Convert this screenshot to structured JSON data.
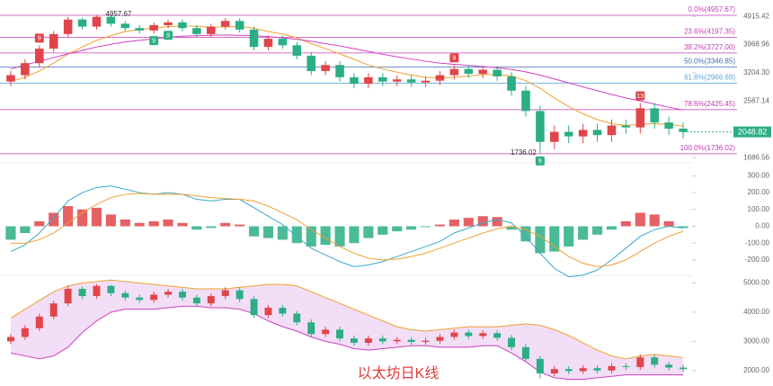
{
  "caption": "以太坊日K线",
  "chart_data": [
    {
      "type": "candlestick",
      "log": true,
      "up_color": "#e0454a",
      "down_color": "#2bae85",
      "open": [
        3000,
        3150,
        3450,
        3850,
        4300,
        4800,
        4550,
        4900,
        4650,
        4500,
        4420,
        4600,
        4700,
        4500,
        4300,
        4550,
        4750,
        4450,
        3900,
        4150,
        3950,
        3650,
        3250,
        3400,
        3100,
        2950,
        3100,
        3000,
        3050,
        2980,
        3020,
        3150,
        3300,
        3180,
        3280,
        3120,
        2800,
        2400,
        1900,
        2050,
        1980,
        2080,
        2000,
        2150,
        2120,
        2450,
        2200,
        2100
      ],
      "high": [
        3250,
        3550,
        3950,
        4400,
        4900,
        4880,
        4957.67,
        4930,
        4750,
        4600,
        4700,
        4800,
        4800,
        4600,
        4650,
        4850,
        4850,
        4550,
        4250,
        4250,
        4050,
        3750,
        3500,
        3500,
        3200,
        3200,
        3200,
        3150,
        3150,
        3120,
        3250,
        3400,
        3400,
        3380,
        3380,
        3220,
        2900,
        2500,
        2150,
        2150,
        2180,
        2180,
        2250,
        2250,
        2550,
        2550,
        2300,
        2200
      ],
      "low": [
        2900,
        3050,
        3350,
        3750,
        4200,
        4450,
        4450,
        4550,
        4400,
        4320,
        4320,
        4500,
        4400,
        4200,
        4200,
        4450,
        4350,
        3800,
        3800,
        3850,
        3550,
        3150,
        3150,
        3000,
        2850,
        2850,
        2900,
        2900,
        2880,
        2880,
        2920,
        3050,
        3080,
        3080,
        3020,
        2700,
        2300,
        1736.02,
        1800,
        1880,
        1880,
        1900,
        1900,
        2020,
        2020,
        2100,
        2000,
        1950
      ],
      "close": [
        3150,
        3450,
        3850,
        4300,
        4800,
        4550,
        4900,
        4650,
        4500,
        4420,
        4600,
        4700,
        4500,
        4300,
        4550,
        4750,
        4450,
        3900,
        4150,
        3950,
        3650,
        3250,
        3400,
        3100,
        2950,
        3100,
        3000,
        3050,
        2980,
        3020,
        3150,
        3300,
        3180,
        3280,
        3120,
        2800,
        2400,
        1900,
        2050,
        1980,
        2080,
        2000,
        2150,
        2120,
        2450,
        2200,
        2100,
        2048.82
      ],
      "series": [
        {
          "color": "#f0a030",
          "values": [
            3000,
            3100,
            3250,
            3450,
            3700,
            3900,
            4100,
            4250,
            4380,
            4450,
            4500,
            4550,
            4580,
            4560,
            4530,
            4540,
            4560,
            4500,
            4380,
            4300,
            4180,
            4000,
            3850,
            3700,
            3550,
            3400,
            3300,
            3220,
            3150,
            3100,
            3080,
            3100,
            3130,
            3160,
            3170,
            3130,
            3020,
            2850,
            2650,
            2480,
            2350,
            2250,
            2180,
            2150,
            2170,
            2180,
            2170,
            2140
          ]
        },
        {
          "color": "#d040c0",
          "values": [
            3300,
            3400,
            3500,
            3600,
            3700,
            3800,
            3900,
            3980,
            4050,
            4100,
            4150,
            4200,
            4230,
            4250,
            4260,
            4270,
            4260,
            4250,
            4220,
            4180,
            4130,
            4070,
            4000,
            3930,
            3850,
            3770,
            3690,
            3620,
            3560,
            3500,
            3450,
            3420,
            3390,
            3360,
            3330,
            3290,
            3230,
            3150,
            3060,
            2970,
            2880,
            2800,
            2720,
            2650,
            2590,
            2530,
            2470,
            2420
          ]
        }
      ],
      "fib_levels": [
        {
          "label": "0.0%(4957.67)",
          "value": 4957.67,
          "color": "#c53bb5"
        },
        {
          "label": "23.6%(4197.35)",
          "value": 4197.35,
          "color": "#c53bb5"
        },
        {
          "label": "38.2%(3727.00)",
          "value": 3727.0,
          "color": "#c53bb5"
        },
        {
          "label": "50.0%(3346.85)",
          "value": 3346.85,
          "color": "#3f6fb5"
        },
        {
          "label": "61.8%(2966.69)",
          "value": 2966.69,
          "color": "#5aa8d8"
        },
        {
          "label": "78.6%(2425.45)",
          "value": 2425.45,
          "color": "#c53bb5"
        },
        {
          "label": "100.0%(1736.02)",
          "value": 1736.02,
          "color": "#c53bb5"
        }
      ],
      "markers": [
        "9",
        "9",
        "13",
        "9",
        "9",
        "9"
      ],
      "ylim": [
        1654,
        5380
      ],
      "yticks": [
        4915.42,
        3968.96,
        {
          "value": 3204.3,
          "label": "3204.30"
        },
        2587.14,
        1686.56
      ]
    },
    {
      "type": "macd",
      "histogram": [
        -80,
        -40,
        30,
        80,
        120,
        100,
        110,
        70,
        40,
        20,
        30,
        40,
        20,
        -20,
        -10,
        20,
        10,
        -60,
        -70,
        -80,
        -100,
        -120,
        -110,
        -120,
        -100,
        -70,
        -50,
        -30,
        -20,
        -5,
        10,
        40,
        50,
        60,
        55,
        -20,
        -90,
        -160,
        -150,
        -120,
        -80,
        -50,
        -20,
        30,
        80,
        70,
        30,
        -10
      ],
      "series": [
        {
          "color": "#3aa8c8",
          "values": [
            -150,
            -110,
            -40,
            50,
            150,
            200,
            230,
            240,
            220,
            200,
            190,
            200,
            190,
            160,
            150,
            160,
            160,
            110,
            60,
            10,
            -60,
            -130,
            -170,
            -210,
            -240,
            -230,
            -210,
            -180,
            -150,
            -120,
            -90,
            -40,
            -10,
            20,
            40,
            20,
            -60,
            -160,
            -250,
            -300,
            -290,
            -260,
            -200,
            -130,
            -60,
            -20,
            0,
            -10
          ]
        },
        {
          "color": "#f0a030",
          "values": [
            -100,
            -100,
            -80,
            -40,
            20,
            80,
            130,
            170,
            190,
            195,
            190,
            190,
            190,
            180,
            170,
            165,
            160,
            150,
            120,
            80,
            40,
            -20,
            -70,
            -120,
            -160,
            -190,
            -200,
            -195,
            -180,
            -160,
            -130,
            -100,
            -70,
            -40,
            -15,
            0,
            -20,
            -60,
            -120,
            -180,
            -220,
            -240,
            -230,
            -200,
            -150,
            -100,
            -60,
            -30
          ]
        }
      ],
      "ylim": [
        -270,
        350
      ],
      "yticks": [
        {
          "value": 300,
          "label": "300.00"
        },
        {
          "value": 200,
          "label": "200.00"
        },
        {
          "value": 100,
          "label": "100.00"
        },
        {
          "value": 0,
          "label": "0.00"
        },
        {
          "value": -100,
          "label": "-100.00"
        },
        {
          "value": -200,
          "label": "-200.00"
        }
      ]
    },
    {
      "type": "bollinger",
      "band_color": "#e9c8f0",
      "upper_color": "#f0a030",
      "lower_color": "#d040c0",
      "upper": [
        3800,
        4100,
        4400,
        4700,
        4900,
        5000,
        5050,
        5100,
        5050,
        5000,
        4950,
        4900,
        4850,
        4800,
        4800,
        4800,
        4850,
        4900,
        4950,
        4950,
        4900,
        4700,
        4500,
        4300,
        4100,
        3900,
        3700,
        3500,
        3400,
        3350,
        3400,
        3450,
        3500,
        3500,
        3500,
        3550,
        3600,
        3550,
        3400,
        3200,
        2950,
        2700,
        2500,
        2400,
        2500,
        2550,
        2500,
        2450
      ],
      "lower": [
        2600,
        2500,
        2400,
        2500,
        2800,
        3300,
        3700,
        4000,
        4100,
        4100,
        4100,
        4150,
        4200,
        4200,
        4150,
        4150,
        4100,
        3950,
        3700,
        3500,
        3350,
        3150,
        3000,
        2900,
        2750,
        2700,
        2750,
        2800,
        2850,
        2850,
        2800,
        2800,
        2800,
        2850,
        2850,
        2600,
        2300,
        1950,
        1750,
        1700,
        1700,
        1750,
        1800,
        1850,
        1850,
        1850,
        1850,
        1850
      ],
      "ylim": [
        1500,
        5200
      ],
      "yticks": [
        {
          "value": 5000,
          "label": "5000.00"
        },
        {
          "value": 4000,
          "label": "4000.00"
        },
        {
          "value": 3000,
          "label": "3000.00"
        },
        {
          "value": 2000,
          "label": "2000.00"
        }
      ]
    }
  ]
}
